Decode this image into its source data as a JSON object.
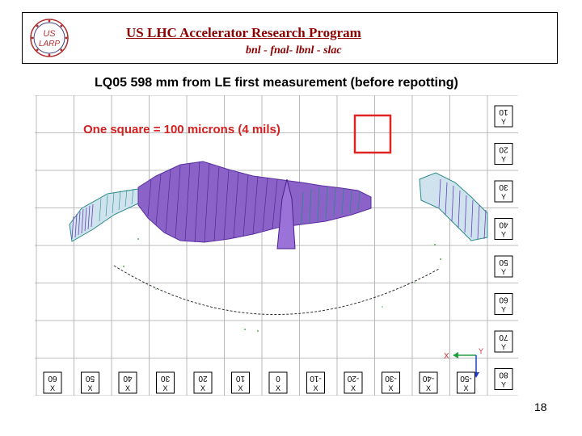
{
  "header": {
    "title": "US LHC Accelerator Research Program",
    "subtitle": "bnl - fnal- lbnl - slac",
    "logo_text_top": "US",
    "logo_text_bottom": "LARP"
  },
  "slide_title": "LQ05  598 mm from LE first measurement (before repotting)",
  "plot": {
    "scale_note": "One square = 100 microns (4 mils)",
    "right_labels": [
      {
        "num": "10",
        "axis": "Y"
      },
      {
        "num": "20",
        "axis": "Y"
      },
      {
        "num": "30",
        "axis": "Y"
      },
      {
        "num": "40",
        "axis": "Y"
      },
      {
        "num": "50",
        "axis": "Y"
      },
      {
        "num": "60",
        "axis": "Y"
      },
      {
        "num": "70",
        "axis": "Y"
      },
      {
        "num": "80",
        "axis": "Y"
      }
    ],
    "bottom_labels": [
      {
        "num": "60",
        "axis": "X"
      },
      {
        "num": "50",
        "axis": "X"
      },
      {
        "num": "40",
        "axis": "X"
      },
      {
        "num": "30",
        "axis": "X"
      },
      {
        "num": "20",
        "axis": "X"
      },
      {
        "num": "10",
        "axis": "X"
      },
      {
        "num": "0",
        "axis": "X"
      },
      {
        "num": "-10",
        "axis": "X"
      },
      {
        "num": "-20",
        "axis": "X"
      },
      {
        "num": "-30",
        "axis": "X"
      },
      {
        "num": "-40",
        "axis": "X"
      },
      {
        "num": "-50",
        "axis": "X"
      }
    ],
    "axis_x_label": "X",
    "axis_y_label": "Y",
    "colors": {
      "grid": "#a8a8a8",
      "purple": "#6a3fb8",
      "teal": "#2a8a86",
      "scale_box": "#e02424",
      "axis_x": "#d03030",
      "axis_y": "#20a040"
    }
  },
  "page_number": "18"
}
